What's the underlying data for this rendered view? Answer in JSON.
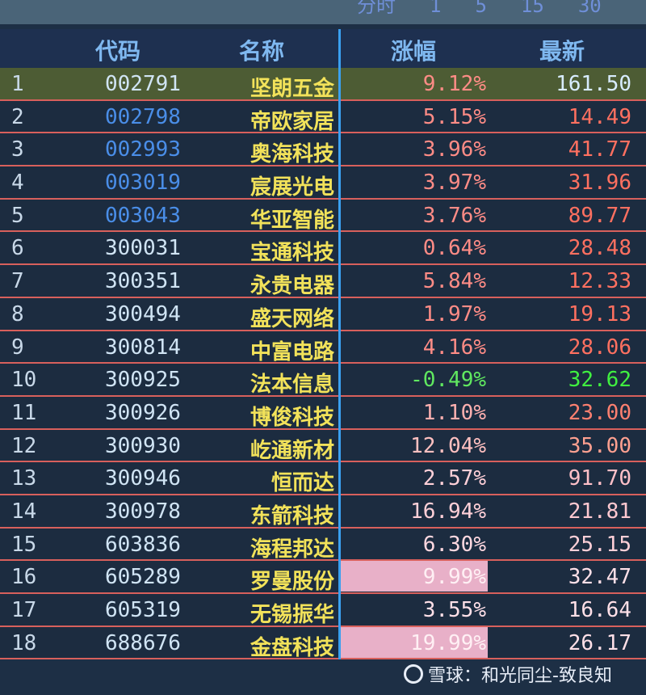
{
  "topbar": {
    "items": [
      "分时",
      "1",
      "5",
      "15",
      "30"
    ]
  },
  "header": {
    "code": "代码",
    "name": "名称",
    "change": "涨幅",
    "last": "最新"
  },
  "rows": [
    {
      "idx": "1",
      "code": "002791",
      "name": "坚朗五金",
      "change": "9.12%",
      "last": "161.50",
      "selected": true,
      "code_color": "light",
      "change_color": "#ff8c86",
      "last_color": "#d8ecff"
    },
    {
      "idx": "2",
      "code": "002798",
      "name": "帝欧家居",
      "change": "5.15%",
      "last": "14.49",
      "code_color": "blue",
      "change_color": "#ff8c86",
      "last_color": "#ff7060"
    },
    {
      "idx": "3",
      "code": "002993",
      "name": "奥海科技",
      "change": "3.96%",
      "last": "41.77",
      "code_color": "blue",
      "change_color": "#ff8c86",
      "last_color": "#ff7060"
    },
    {
      "idx": "4",
      "code": "003019",
      "name": "宸展光电",
      "change": "3.97%",
      "last": "31.96",
      "code_color": "blue",
      "change_color": "#ff8c86",
      "last_color": "#ff7060"
    },
    {
      "idx": "5",
      "code": "003043",
      "name": "华亚智能",
      "change": "3.76%",
      "last": "89.77",
      "code_color": "blue",
      "change_color": "#ff8c86",
      "last_color": "#ff7060"
    },
    {
      "idx": "6",
      "code": "300031",
      "name": "宝通科技",
      "change": "0.64%",
      "last": "28.48",
      "code_color": "light",
      "change_color": "#ff8c86",
      "last_color": "#ff7060"
    },
    {
      "idx": "7",
      "code": "300351",
      "name": "永贵电器",
      "change": "5.84%",
      "last": "12.33",
      "code_color": "light",
      "change_color": "#ff8c86",
      "last_color": "#ff7060"
    },
    {
      "idx": "8",
      "code": "300494",
      "name": "盛天网络",
      "change": "1.97%",
      "last": "19.13",
      "code_color": "light",
      "change_color": "#ff8c86",
      "last_color": "#ff7060"
    },
    {
      "idx": "9",
      "code": "300814",
      "name": "中富电路",
      "change": "4.16%",
      "last": "28.06",
      "code_color": "light",
      "change_color": "#ff8c86",
      "last_color": "#ff7060"
    },
    {
      "idx": "10",
      "code": "300925",
      "name": "法本信息",
      "change": "-0.49%",
      "last": "32.62",
      "code_color": "light",
      "change_color": "#60e860",
      "last_color": "#40f040"
    },
    {
      "idx": "11",
      "code": "300926",
      "name": "博俊科技",
      "change": "1.10%",
      "last": "23.00",
      "code_color": "light",
      "change_color": "#ffb0b0",
      "last_color": "#ff8070"
    },
    {
      "idx": "12",
      "code": "300930",
      "name": "屹通新材",
      "change": "12.04%",
      "last": "35.00",
      "code_color": "light",
      "change_color": "#ffc0c0",
      "last_color": "#ffa090"
    },
    {
      "idx": "13",
      "code": "300946",
      "name": "恒而达",
      "change": "2.57%",
      "last": "91.70",
      "code_color": "light",
      "change_color": "#ffd0d8",
      "last_color": "#ffc0c8"
    },
    {
      "idx": "14",
      "code": "300978",
      "name": "东箭科技",
      "change": "16.94%",
      "last": "21.81",
      "code_color": "light",
      "change_color": "#ffd0d8",
      "last_color": "#ffc8d0"
    },
    {
      "idx": "15",
      "code": "603836",
      "name": "海程邦达",
      "change": "6.30%",
      "last": "25.15",
      "code_color": "light",
      "change_color": "#ffd8e0",
      "last_color": "#ffd0d8"
    },
    {
      "idx": "16",
      "code": "605289",
      "name": "罗曼股份",
      "change": "9.99%",
      "last": "32.47",
      "code_color": "light",
      "change_color": "#fff0f4",
      "last_color": "#ffe0e8",
      "limit": true
    },
    {
      "idx": "17",
      "code": "605319",
      "name": "无锡振华",
      "change": "3.55%",
      "last": "16.64",
      "code_color": "light",
      "change_color": "#ffe0e8",
      "last_color": "#ffe0e8"
    },
    {
      "idx": "18",
      "code": "688676",
      "name": "金盘科技",
      "change": "19.99%",
      "last": "26.17",
      "code_color": "light",
      "change_color": "#fff0f4",
      "last_color": "#ffe0e8",
      "limit": true
    }
  ],
  "watermark": {
    "text": "雪球：和光同尘-致良知",
    "icon": "snowball-logo-icon"
  }
}
